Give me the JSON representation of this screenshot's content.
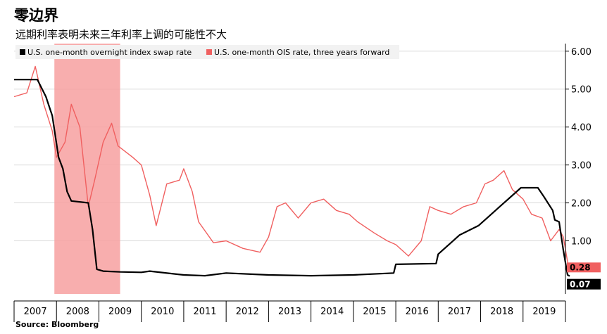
{
  "header": {
    "title": "零边界",
    "subtitle": "远期利率表明未来三年利率上调的可能性不大"
  },
  "source": "Source: Bloomberg",
  "colors": {
    "black_series": "#000000",
    "red_series": "#f06060",
    "recession_band": "#f7a0a0",
    "grid": "#d9d9d9"
  },
  "chart_data": {
    "type": "line",
    "xlim": [
      2007.0,
      2020.0
    ],
    "ylim": [
      -0.4,
      6.2
    ],
    "x_ticks": [
      "2007",
      "2008",
      "2009",
      "2010",
      "2011",
      "2012",
      "2013",
      "2014",
      "2015",
      "2016",
      "2017",
      "2018",
      "2019"
    ],
    "y_ticks": [
      "6.00",
      "5.00",
      "4.00",
      "3.00",
      "2.00",
      "1.00"
    ],
    "y_tick_values": [
      6,
      5,
      4,
      3,
      2,
      1
    ],
    "legend": {
      "placement": "top-left"
    },
    "grid": true,
    "shaded_period": [
      2007.95,
      2009.5
    ],
    "series": [
      {
        "name": "U.S. one-month overnight index swap rate",
        "color": "#000000",
        "end_label": "0.07",
        "points": [
          [
            2007.0,
            5.25
          ],
          [
            2007.55,
            5.25
          ],
          [
            2007.75,
            4.8
          ],
          [
            2007.9,
            4.3
          ],
          [
            2008.05,
            3.2
          ],
          [
            2008.15,
            2.9
          ],
          [
            2008.25,
            2.3
          ],
          [
            2008.35,
            2.05
          ],
          [
            2008.75,
            2.0
          ],
          [
            2008.85,
            1.3
          ],
          [
            2008.95,
            0.25
          ],
          [
            2009.1,
            0.2
          ],
          [
            2009.5,
            0.18
          ],
          [
            2010.0,
            0.17
          ],
          [
            2010.2,
            0.2
          ],
          [
            2011.0,
            0.1
          ],
          [
            2011.5,
            0.08
          ],
          [
            2012.0,
            0.15
          ],
          [
            2013.0,
            0.1
          ],
          [
            2014.0,
            0.08
          ],
          [
            2015.0,
            0.1
          ],
          [
            2015.95,
            0.15
          ],
          [
            2016.0,
            0.38
          ],
          [
            2016.95,
            0.4
          ],
          [
            2017.0,
            0.65
          ],
          [
            2017.25,
            0.9
          ],
          [
            2017.5,
            1.15
          ],
          [
            2017.95,
            1.4
          ],
          [
            2018.2,
            1.65
          ],
          [
            2018.45,
            1.9
          ],
          [
            2018.7,
            2.15
          ],
          [
            2018.95,
            2.4
          ],
          [
            2019.35,
            2.4
          ],
          [
            2019.5,
            2.15
          ],
          [
            2019.7,
            1.8
          ],
          [
            2019.75,
            1.55
          ],
          [
            2019.85,
            1.5
          ],
          [
            2019.95,
            0.75
          ],
          [
            2020.05,
            0.1
          ],
          [
            2020.1,
            0.07
          ]
        ]
      },
      {
        "name": "U.S. one-month OIS rate, three years forward",
        "color": "#f06060",
        "end_label": "0.28",
        "points": [
          [
            2007.0,
            4.8
          ],
          [
            2007.3,
            4.9
          ],
          [
            2007.5,
            5.6
          ],
          [
            2007.7,
            4.6
          ],
          [
            2007.9,
            3.9
          ],
          [
            2008.0,
            3.2
          ],
          [
            2008.2,
            3.6
          ],
          [
            2008.35,
            4.6
          ],
          [
            2008.55,
            4.0
          ],
          [
            2008.75,
            1.9
          ],
          [
            2008.9,
            2.6
          ],
          [
            2009.1,
            3.6
          ],
          [
            2009.3,
            4.1
          ],
          [
            2009.45,
            3.5
          ],
          [
            2009.8,
            3.2
          ],
          [
            2010.0,
            3.0
          ],
          [
            2010.2,
            2.2
          ],
          [
            2010.35,
            1.4
          ],
          [
            2010.6,
            2.5
          ],
          [
            2010.9,
            2.6
          ],
          [
            2011.0,
            2.9
          ],
          [
            2011.2,
            2.3
          ],
          [
            2011.35,
            1.5
          ],
          [
            2011.7,
            0.95
          ],
          [
            2012.0,
            1.0
          ],
          [
            2012.4,
            0.8
          ],
          [
            2012.8,
            0.7
          ],
          [
            2013.0,
            1.1
          ],
          [
            2013.2,
            1.9
          ],
          [
            2013.4,
            2.0
          ],
          [
            2013.7,
            1.6
          ],
          [
            2014.0,
            2.0
          ],
          [
            2014.3,
            2.1
          ],
          [
            2014.6,
            1.8
          ],
          [
            2014.9,
            1.7
          ],
          [
            2015.1,
            1.5
          ],
          [
            2015.5,
            1.2
          ],
          [
            2015.8,
            1.0
          ],
          [
            2016.0,
            0.9
          ],
          [
            2016.3,
            0.6
          ],
          [
            2016.6,
            1.0
          ],
          [
            2016.8,
            1.9
          ],
          [
            2017.0,
            1.8
          ],
          [
            2017.3,
            1.7
          ],
          [
            2017.6,
            1.9
          ],
          [
            2017.9,
            2.0
          ],
          [
            2018.1,
            2.5
          ],
          [
            2018.3,
            2.6
          ],
          [
            2018.55,
            2.85
          ],
          [
            2018.75,
            2.35
          ],
          [
            2019.0,
            2.1
          ],
          [
            2019.2,
            1.7
          ],
          [
            2019.45,
            1.6
          ],
          [
            2019.65,
            1.0
          ],
          [
            2019.85,
            1.3
          ],
          [
            2019.95,
            1.1
          ],
          [
            2020.05,
            0.45
          ],
          [
            2020.1,
            0.28
          ]
        ]
      }
    ]
  }
}
